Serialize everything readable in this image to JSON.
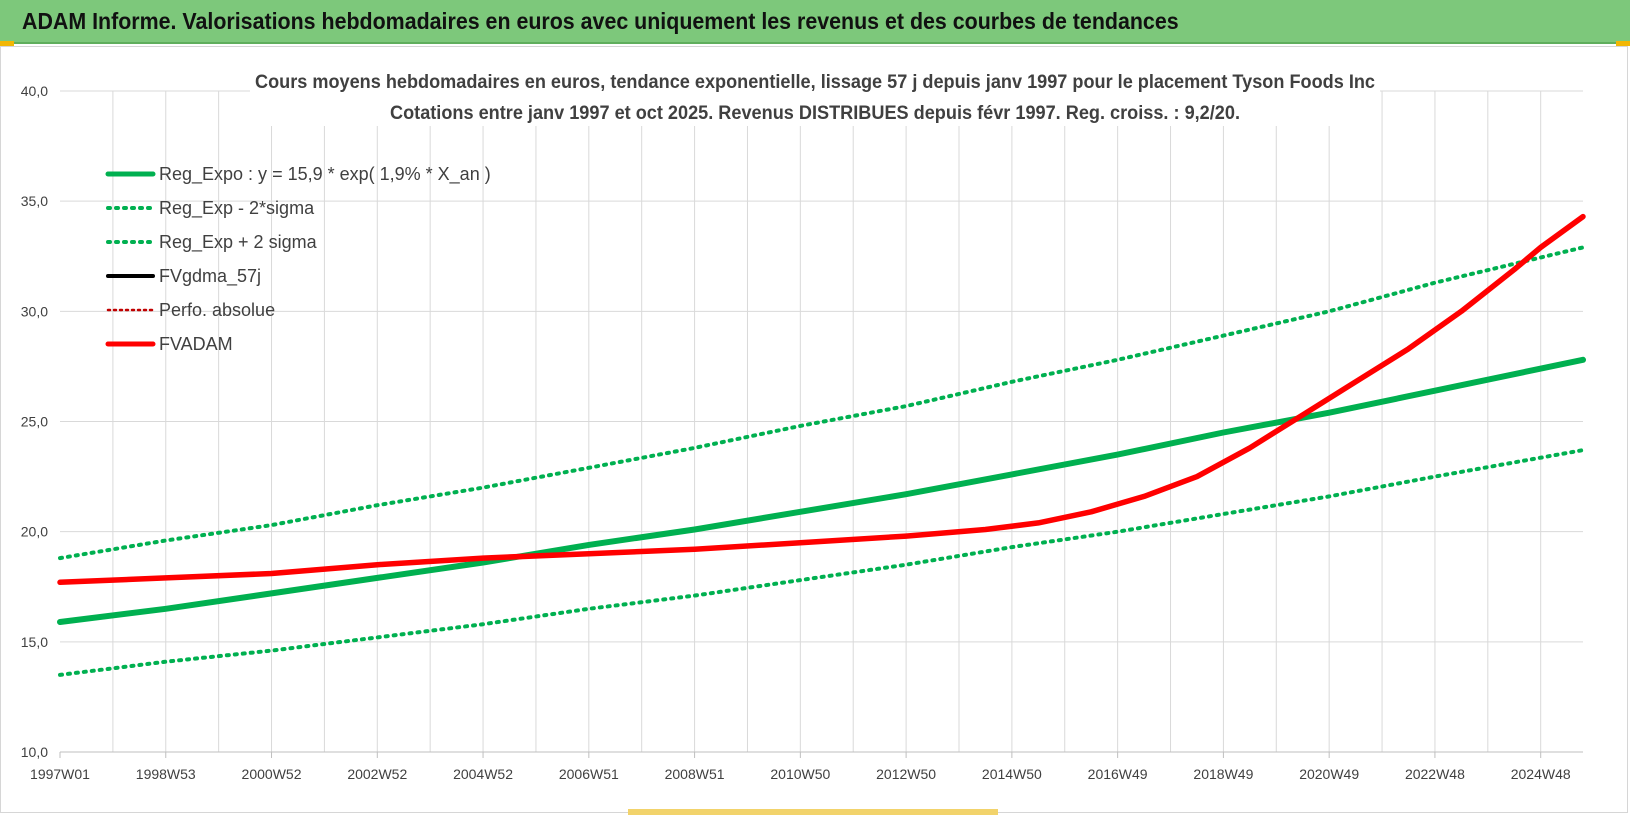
{
  "header": {
    "title": "ADAM Informe. Valorisations hebdomadaires en euros avec uniquement les revenus et des courbes de tendances"
  },
  "colors": {
    "banner": "#7dc87b",
    "green": "#00b050",
    "red": "#ff0000",
    "black": "#000000",
    "darkred": "#c00000",
    "grid": "#d9d9d9",
    "text": "#404040"
  },
  "chart_data": {
    "type": "line",
    "title": "Cours moyens hebdomadaires en euros, tendance exponentielle, lissage 57 j depuis janv 1997 pour le placement Tyson Foods Inc",
    "subtitle": "Cotations entre janv 1997 et oct 2025. Revenus DISTRIBUES depuis févr 1997. Reg. croiss. : 9,2/20.",
    "xlabel": "",
    "ylabel": "",
    "ylim": [
      10,
      40
    ],
    "yticks": [
      "10,0",
      "15,0",
      "20,0",
      "25,0",
      "30,0",
      "35,0",
      "40,0"
    ],
    "xlim": [
      1997.0,
      2025.8
    ],
    "xticks": [
      {
        "label": "1997W01",
        "x": 1997.0
      },
      {
        "label": "1998W53",
        "x": 1999.0
      },
      {
        "label": "2000W52",
        "x": 2001.0
      },
      {
        "label": "2002W52",
        "x": 2003.0
      },
      {
        "label": "2004W52",
        "x": 2005.0
      },
      {
        "label": "2006W51",
        "x": 2007.0
      },
      {
        "label": "2008W51",
        "x": 2009.0
      },
      {
        "label": "2010W50",
        "x": 2011.0
      },
      {
        "label": "2012W50",
        "x": 2013.0
      },
      {
        "label": "2014W50",
        "x": 2015.0
      },
      {
        "label": "2016W49",
        "x": 2017.0
      },
      {
        "label": "2018W49",
        "x": 2019.0
      },
      {
        "label": "2020W49",
        "x": 2021.0
      },
      {
        "label": "2022W48",
        "x": 2023.0
      },
      {
        "label": "2024W48",
        "x": 2025.0
      }
    ],
    "grid": true,
    "legend_position": "top-left",
    "series": [
      {
        "name": "Reg_Expo : y = 15,9 * exp( 1,9% *  X_an )",
        "style": "solid-green",
        "x": [
          1997.0,
          1999.0,
          2001.0,
          2003.0,
          2005.0,
          2007.0,
          2009.0,
          2011.0,
          2013.0,
          2015.0,
          2017.0,
          2019.0,
          2021.0,
          2023.0,
          2025.8
        ],
        "y": [
          15.9,
          16.5,
          17.2,
          17.9,
          18.6,
          19.4,
          20.1,
          20.9,
          21.7,
          22.6,
          23.5,
          24.5,
          25.4,
          26.4,
          27.8
        ]
      },
      {
        "name": "Reg_Exp - 2*sigma",
        "style": "dotted-green",
        "x": [
          1997.0,
          1999.0,
          2001.0,
          2003.0,
          2005.0,
          2007.0,
          2009.0,
          2011.0,
          2013.0,
          2015.0,
          2017.0,
          2019.0,
          2021.0,
          2023.0,
          2025.8
        ],
        "y": [
          13.5,
          14.1,
          14.6,
          15.2,
          15.8,
          16.5,
          17.1,
          17.8,
          18.5,
          19.3,
          20.0,
          20.8,
          21.6,
          22.5,
          23.7
        ]
      },
      {
        "name": "Reg_Exp + 2 sigma",
        "style": "dotted-green",
        "x": [
          1997.0,
          1999.0,
          2001.0,
          2003.0,
          2005.0,
          2007.0,
          2009.0,
          2011.0,
          2013.0,
          2015.0,
          2017.0,
          2019.0,
          2021.0,
          2023.0,
          2025.8
        ],
        "y": [
          18.8,
          19.6,
          20.3,
          21.2,
          22.0,
          22.9,
          23.8,
          24.8,
          25.7,
          26.8,
          27.8,
          28.9,
          30.0,
          31.3,
          32.9
        ]
      },
      {
        "name": "FVgdma_57j",
        "style": "solid-black",
        "x": [
          1997.0,
          1999.0,
          2001.0,
          2003.0,
          2005.0,
          2007.0,
          2009.0,
          2011.0,
          2013.0,
          2014.5,
          2015.5,
          2016.5,
          2017.5,
          2018.5,
          2019.5,
          2020.5,
          2021.5,
          2022.5,
          2023.5,
          2024.5,
          2025.0,
          2025.8
        ],
        "y": [
          17.7,
          17.9,
          18.1,
          18.5,
          18.8,
          19.0,
          19.2,
          19.5,
          19.8,
          20.1,
          20.4,
          20.9,
          21.6,
          22.5,
          23.8,
          25.3,
          26.8,
          28.3,
          30.0,
          31.9,
          32.9,
          34.3
        ]
      },
      {
        "name": "Perfo. absolue",
        "style": "dotted-darkred",
        "x": [
          1997.0,
          1999.0,
          2001.0,
          2003.0,
          2005.0,
          2007.0,
          2009.0,
          2011.0,
          2013.0,
          2014.5,
          2015.5,
          2016.5,
          2017.5,
          2018.5,
          2019.5,
          2020.5,
          2021.5,
          2022.5,
          2023.5,
          2024.5,
          2025.0,
          2025.8
        ],
        "y": [
          17.7,
          17.9,
          18.1,
          18.5,
          18.8,
          19.0,
          19.2,
          19.5,
          19.8,
          20.1,
          20.4,
          20.9,
          21.6,
          22.5,
          23.8,
          25.3,
          26.8,
          28.3,
          30.0,
          31.9,
          32.9,
          34.3
        ]
      },
      {
        "name": "FVADAM",
        "style": "solid-red",
        "x": [
          1997.0,
          1999.0,
          2001.0,
          2003.0,
          2005.0,
          2007.0,
          2009.0,
          2011.0,
          2013.0,
          2014.5,
          2015.5,
          2016.5,
          2017.5,
          2018.5,
          2019.5,
          2020.5,
          2021.5,
          2022.5,
          2023.5,
          2024.5,
          2025.0,
          2025.8
        ],
        "y": [
          17.7,
          17.9,
          18.1,
          18.5,
          18.8,
          19.0,
          19.2,
          19.5,
          19.8,
          20.1,
          20.4,
          20.9,
          21.6,
          22.5,
          23.8,
          25.3,
          26.8,
          28.3,
          30.0,
          31.9,
          32.9,
          34.3
        ]
      }
    ]
  }
}
